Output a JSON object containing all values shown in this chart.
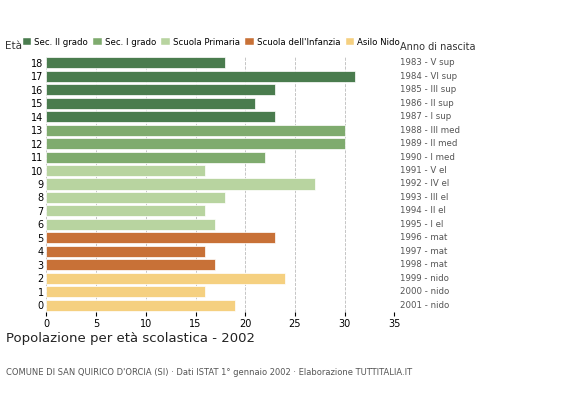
{
  "ages": [
    18,
    17,
    16,
    15,
    14,
    13,
    12,
    11,
    10,
    9,
    8,
    7,
    6,
    5,
    4,
    3,
    2,
    1,
    0
  ],
  "values": [
    18,
    31,
    23,
    21,
    23,
    30,
    30,
    22,
    16,
    27,
    18,
    16,
    17,
    23,
    16,
    17,
    24,
    16,
    19
  ],
  "right_labels": [
    "1983 - V sup",
    "1984 - VI sup",
    "1985 - III sup",
    "1986 - II sup",
    "1987 - I sup",
    "1988 - III med",
    "1989 - II med",
    "1990 - I med",
    "1991 - V el",
    "1992 - IV el",
    "1993 - III el",
    "1994 - II el",
    "1995 - I el",
    "1996 - mat",
    "1997 - mat",
    "1998 - mat",
    "1999 - nido",
    "2000 - nido",
    "2001 - nido"
  ],
  "categories": {
    "Sec. II grado": {
      "ages": [
        18,
        17,
        16,
        15,
        14
      ],
      "color": "#4a7c4e"
    },
    "Sec. I grado": {
      "ages": [
        13,
        12,
        11
      ],
      "color": "#7fab6e"
    },
    "Scuola Primaria": {
      "ages": [
        10,
        9,
        8,
        7,
        6
      ],
      "color": "#b8d4a0"
    },
    "Scuola dell'Infanzia": {
      "ages": [
        5,
        4,
        3
      ],
      "color": "#c87137"
    },
    "Asilo Nido": {
      "ages": [
        2,
        1,
        0
      ],
      "color": "#f5d080"
    }
  },
  "xlim": [
    0,
    35
  ],
  "xticks": [
    0,
    5,
    10,
    15,
    20,
    25,
    30,
    35
  ],
  "title": "Popolazione per età scolastica - 2002",
  "subtitle": "COMUNE DI SAN QUIRICO D'ORCIA (SI) · Dati ISTAT 1° gennaio 2002 · Elaborazione TUTTITALIA.IT",
  "ylabel_left": "Età",
  "ylabel_right": "Anno di nascita",
  "bar_height": 0.82,
  "background_color": "#ffffff",
  "grid_color": "#bbbbbb"
}
